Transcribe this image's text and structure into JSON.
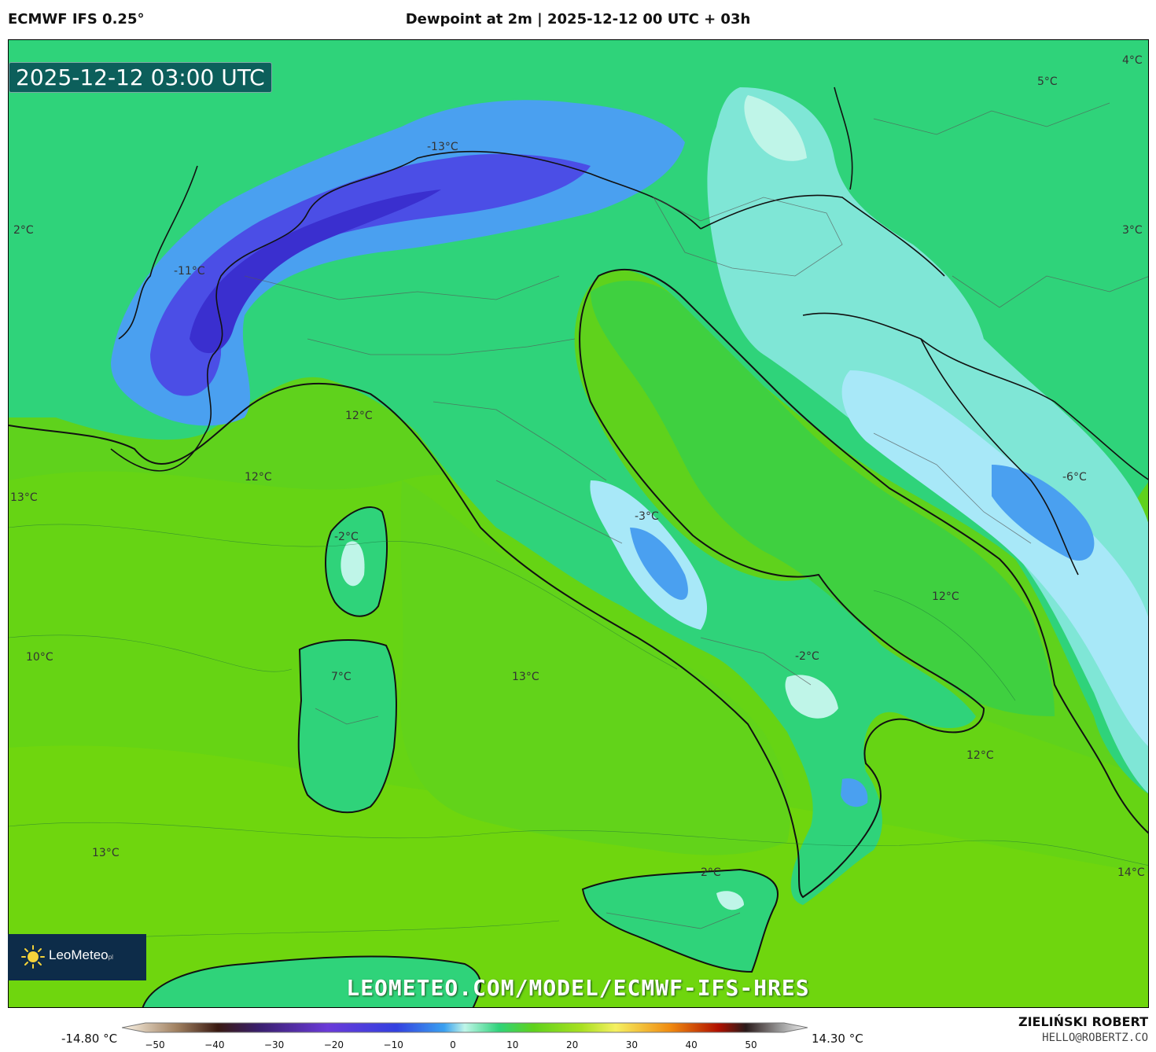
{
  "header": {
    "model": "ECMWF IFS 0.25°",
    "title": "Dewpoint at 2m | 2025-12-12 00 UTC + 03h"
  },
  "map": {
    "valid_time": "2025-12-12 03:00 UTC",
    "watermark": "LEOMETEO.COM/MODEL/ECMWF-IFS-HRES",
    "temperature_labels": [
      "4°C",
      "5°C",
      "2°C",
      "3°C",
      "-13°C",
      "-11°C",
      "12°C",
      "12°C",
      "13°C",
      "-2°C",
      "-3°C",
      "-6°C",
      "10°C",
      "7°C",
      "13°C",
      "12°C",
      "-2°C",
      "12°C",
      "13°C",
      "2°C",
      "14°C"
    ]
  },
  "logo": {
    "name": "LeoMeteo",
    "suffix": "pl"
  },
  "colorbar": {
    "min_label": "-14.80 °C",
    "max_label": "14.30 °C",
    "ticks": [
      "−50",
      "−40",
      "−30",
      "−20",
      "−10",
      "0",
      "10",
      "20",
      "30",
      "40",
      "50"
    ]
  },
  "credits": {
    "author": "ZIELIŃSKI ROBERT",
    "email": "HELLO@ROBERTZ.CO"
  },
  "colors": {
    "sea": "#5fd21c",
    "land_low": "#2fd37a",
    "cold_light": "#7fe6d6",
    "cold_blue": "#4aa0f0",
    "very_cold": "#4b4ee6"
  }
}
